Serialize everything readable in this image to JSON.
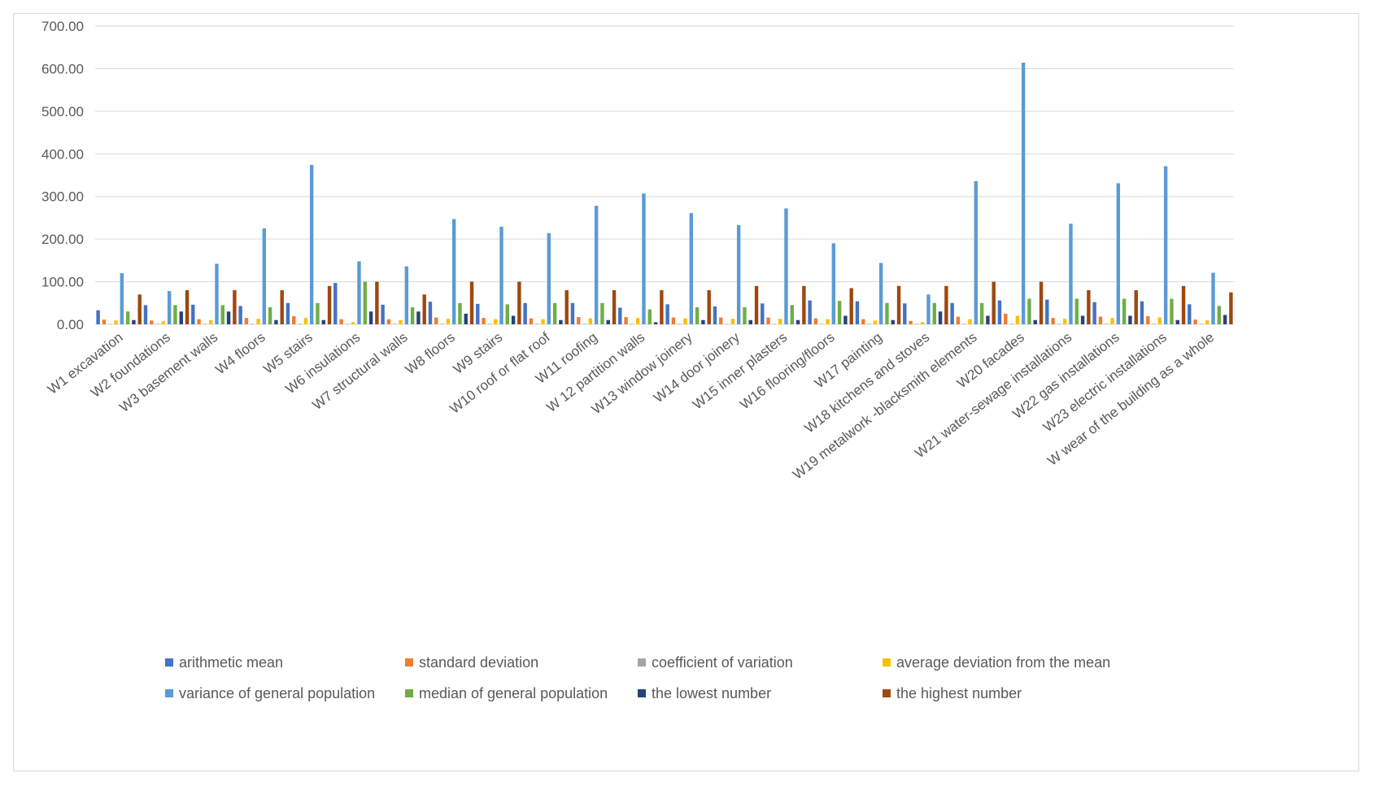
{
  "chart_data": {
    "type": "bar",
    "title": "",
    "xlabel": "",
    "ylabel": "",
    "ylim": [
      0,
      700
    ],
    "yticks": [
      "0.00",
      "100.00",
      "200.00",
      "300.00",
      "400.00",
      "500.00",
      "600.00",
      "700.00"
    ],
    "grid": true,
    "legend_position": "bottom",
    "categories": [
      "W1 excavation",
      "W2 foundations",
      "W3 basement walls",
      "W4 floors",
      "W5 stairs",
      "W6 insulations",
      "W7 structural walls",
      "W8 floors",
      "W9 stairs",
      "W10 roof or flat roof",
      "W11 roofing",
      "W 12 partition walls",
      "W13 window joinery",
      "W14 door joinery",
      "W15 inner plasters",
      "W16 flooring/floors",
      "W17 painting",
      "W18 kitchens and stoves",
      "W19 metalwork -blacksmith elements",
      "W20 facades",
      "W21 water-sewage installations",
      "W22 gas installations",
      "W23 electric installations",
      "W wear of the building as a whole"
    ],
    "series": [
      {
        "name": "arithmetic mean",
        "color": "#4472c4",
        "values": [
          33,
          45,
          46,
          43,
          50,
          97,
          46,
          53,
          48,
          50,
          50,
          39,
          47,
          42,
          49,
          56,
          54,
          49,
          50,
          56,
          58,
          52,
          54,
          47
        ]
      },
      {
        "name": "standard deviation",
        "color": "#ed7d31",
        "values": [
          11,
          9,
          12,
          15,
          19,
          12,
          12,
          16,
          15,
          14,
          17,
          17,
          16,
          16,
          16,
          14,
          12,
          8,
          18,
          25,
          15,
          18,
          19,
          11
        ]
      },
      {
        "name": "coefficient of variation",
        "color": "#a5a5a5",
        "values": [
          0.3,
          0.2,
          0.3,
          0.3,
          0.4,
          0.1,
          0.3,
          0.3,
          0.3,
          0.3,
          0.3,
          0.4,
          0.3,
          0.4,
          0.3,
          0.3,
          0.2,
          0.2,
          0.4,
          0.4,
          0.3,
          0.3,
          0.4,
          0.2
        ]
      },
      {
        "name": "average deviation from the mean",
        "color": "#ffc000",
        "values": [
          9,
          7,
          10,
          13,
          15,
          5,
          10,
          13,
          12,
          12,
          14,
          15,
          14,
          13,
          13,
          12,
          9,
          5,
          12,
          20,
          13,
          15,
          16,
          9
        ]
      },
      {
        "name": "variance of general population",
        "color": "#5b9bd5",
        "values": [
          120,
          78,
          142,
          225,
          374,
          148,
          136,
          247,
          229,
          214,
          278,
          307,
          261,
          233,
          272,
          190,
          144,
          70,
          336,
          614,
          236,
          331,
          371,
          121
        ]
      },
      {
        "name": "median of general population",
        "color": "#70ad47",
        "values": [
          30,
          45,
          45,
          40,
          50,
          100,
          40,
          50,
          47,
          50,
          50,
          35,
          40,
          40,
          45,
          55,
          50,
          50,
          50,
          60,
          60,
          60,
          60,
          43
        ]
      },
      {
        "name": "the lowest number",
        "color": "#264478",
        "values": [
          10,
          30,
          30,
          10,
          10,
          30,
          30,
          25,
          20,
          10,
          10,
          5,
          10,
          10,
          10,
          20,
          10,
          30,
          20,
          10,
          20,
          20,
          10,
          22
        ]
      },
      {
        "name": "the highest number",
        "color": "#9e480e",
        "values": [
          70,
          80,
          80,
          80,
          90,
          100,
          70,
          100,
          100,
          80,
          80,
          80,
          80,
          90,
          90,
          85,
          90,
          90,
          100,
          100,
          80,
          80,
          90,
          75
        ]
      }
    ]
  }
}
